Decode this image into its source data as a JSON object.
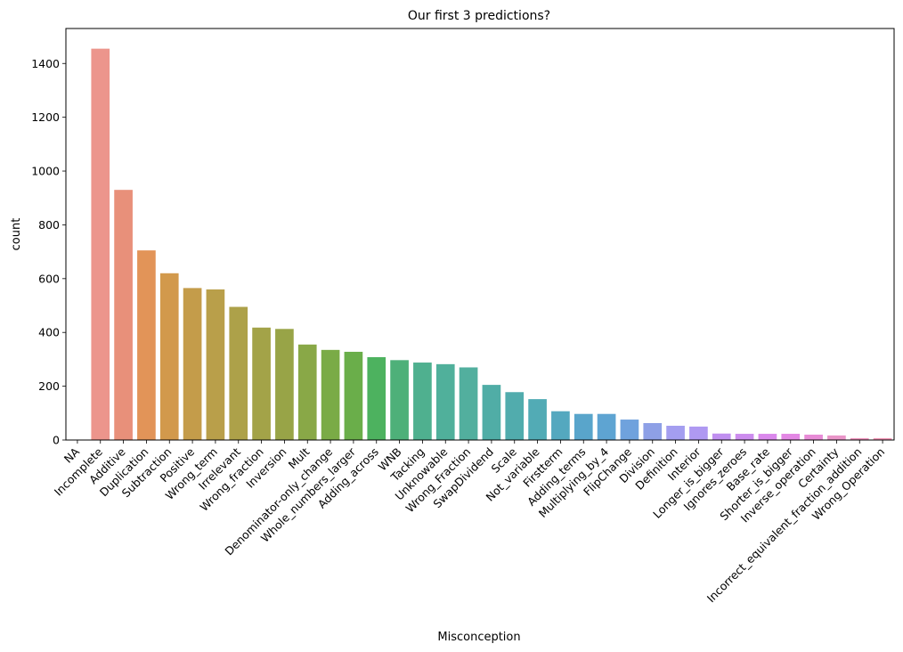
{
  "chart_data": {
    "type": "bar",
    "title": "Our first 3 predictions?",
    "xlabel": "Misconception",
    "ylabel": "count",
    "ylim": [
      0,
      1530
    ],
    "yticks": [
      0,
      200,
      400,
      600,
      800,
      1000,
      1200,
      1400
    ],
    "grid": false,
    "categories": [
      "NA",
      "Incomplete",
      "Additive",
      "Duplication",
      "Subtraction",
      "Positive",
      "Wrong_term",
      "Irrelevant",
      "Wrong_fraction",
      "Inversion",
      "Mult",
      "Denominator-only_change",
      "Whole_numbers_larger",
      "Adding_across",
      "WNB",
      "Tacking",
      "Unknowable",
      "Wrong_Fraction",
      "SwapDividend",
      "Scale",
      "Not_variable",
      "Firstterm",
      "Adding_terms",
      "Multiplying_by_4",
      "FlipChange",
      "Division",
      "Definition",
      "Interior",
      "Longer_is_bigger",
      "Ignores_zeroes",
      "Base_rate",
      "Shorter_is_bigger",
      "Inverse_operation",
      "Certainty",
      "Incorrect_equivalent_fraction_addition",
      "Wrong_Operation"
    ],
    "values": [
      0,
      1455,
      930,
      705,
      620,
      565,
      560,
      495,
      418,
      413,
      355,
      335,
      328,
      308,
      297,
      288,
      282,
      270,
      205,
      178,
      152,
      107,
      97,
      97,
      76,
      63,
      53,
      50,
      24,
      23,
      23,
      23,
      20,
      17,
      7,
      7
    ],
    "colors": [
      "#f0999a",
      "#ec958c",
      "#e8907a",
      "#e29458",
      "#d2994c",
      "#c49c4a",
      "#b99f4a",
      "#ada149",
      "#a3a348",
      "#98a447",
      "#89a847",
      "#7aab46",
      "#6aae4a",
      "#4db25f",
      "#4eb079",
      "#4fb08f",
      "#50b09b",
      "#52af9e",
      "#50ada6",
      "#51acad",
      "#52abb5",
      "#54a8bf",
      "#59a5cb",
      "#5ea4d2",
      "#6fa2dd",
      "#8ea0e6",
      "#a49ef0",
      "#af99f2",
      "#c08ff0",
      "#cc8cee",
      "#da88ec",
      "#e387e4",
      "#e78bd6",
      "#e995c8",
      "#ee93bc",
      "#f094b4"
    ]
  }
}
